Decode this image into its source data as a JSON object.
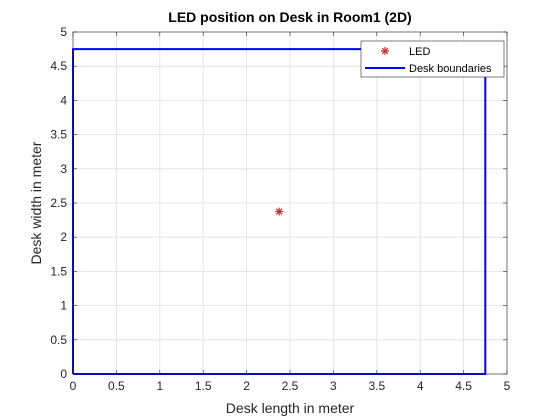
{
  "chart_data": {
    "type": "scatter",
    "title": "LED position on Desk in Room1 (2D)",
    "xlabel": "Desk length in meter",
    "ylabel": "Desk width in meter",
    "xlim": [
      0,
      5
    ],
    "ylim": [
      0,
      5
    ],
    "grid": true,
    "legend_position": "top-right",
    "x_ticks": [
      0,
      0.5,
      1,
      1.5,
      2,
      2.5,
      3,
      3.5,
      4,
      4.5,
      5
    ],
    "x_tick_labels": [
      "0",
      "0.5",
      "1",
      "1.5",
      "2",
      "2.5",
      "3",
      "3.5",
      "4",
      "4.5",
      "5"
    ],
    "y_ticks": [
      0,
      0.5,
      1,
      1.5,
      2,
      2.5,
      3,
      3.5,
      4,
      4.5,
      5
    ],
    "y_tick_labels": [
      "0",
      "0.5",
      "1",
      "1.5",
      "2",
      "2.5",
      "3",
      "3.5",
      "4",
      "4.5",
      "5"
    ],
    "series": [
      {
        "name": "LED",
        "kind": "marker",
        "marker": "*",
        "color": "#d62728",
        "x": [
          2.375
        ],
        "y": [
          2.375
        ]
      },
      {
        "name": "Desk boundaries",
        "kind": "line",
        "color": "#0000ff",
        "x": [
          0,
          4.75,
          4.75,
          0,
          0
        ],
        "y": [
          0,
          0,
          4.75,
          4.75,
          0
        ]
      }
    ]
  }
}
